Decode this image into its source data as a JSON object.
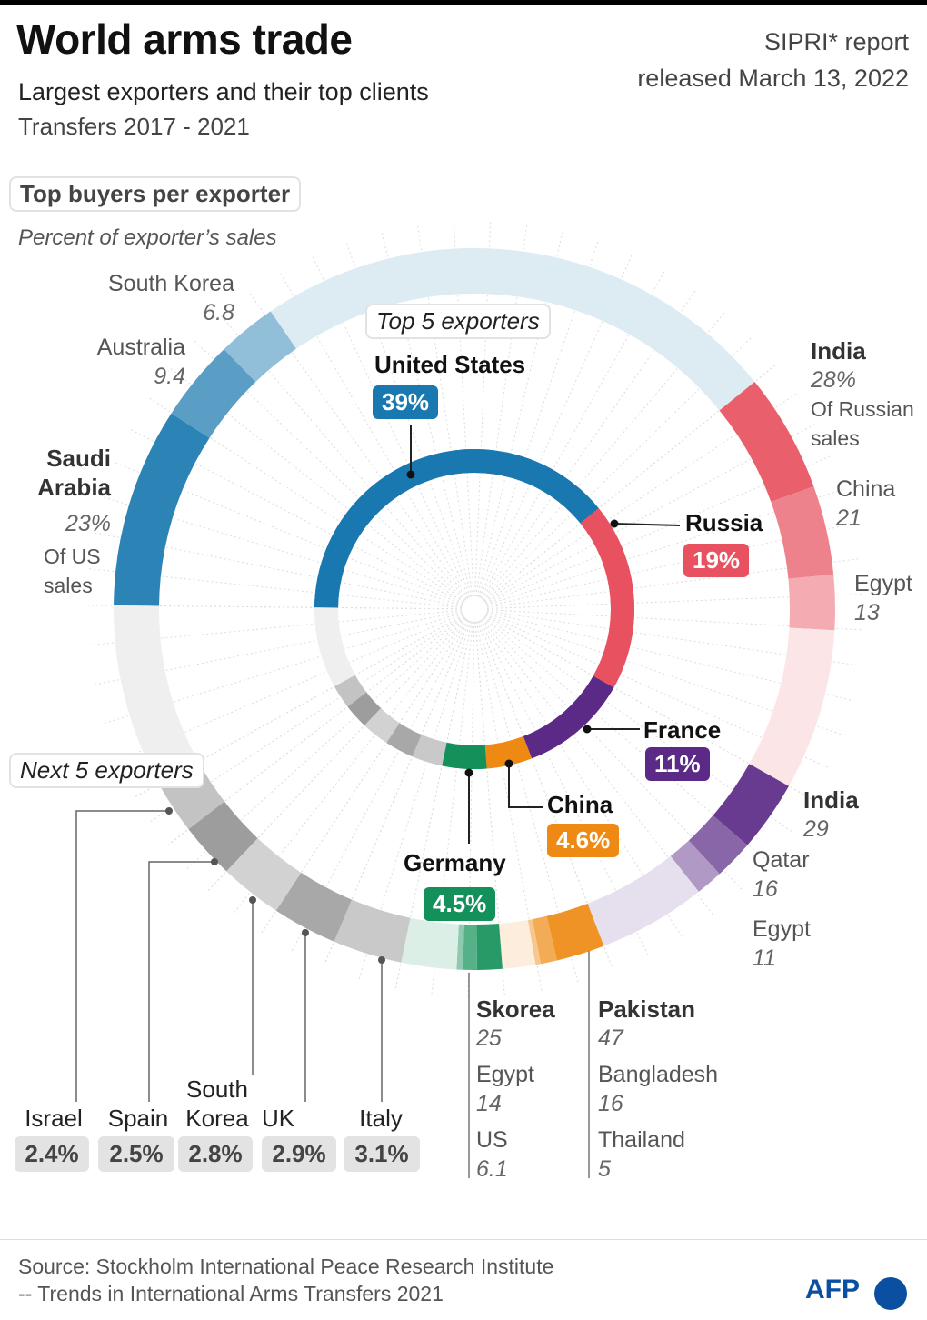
{
  "header": {
    "title": "World arms trade",
    "subtitle": "Largest exporters and their top clients",
    "period": "Transfers 2017 - 2021",
    "report_line1": "SIPRI* report",
    "report_line2": "released March 13, 2022"
  },
  "legend": {
    "top_buyers_title": "Top buyers per exporter",
    "top_buyers_note": "Percent of exporter’s  sales",
    "top5_title": "Top 5 exporters",
    "next5_title": "Next 5 exporters"
  },
  "chart_data": {
    "type": "pie",
    "top_exporters": [
      {
        "name": "United States",
        "share_label": "39%",
        "share": 39,
        "color": "#1a78b0"
      },
      {
        "name": "Russia",
        "share_label": "19%",
        "share": 19,
        "color": "#e8515f"
      },
      {
        "name": "France",
        "share_label": "11%",
        "share": 11,
        "color": "#5b2a86"
      },
      {
        "name": "China",
        "share_label": "4.6%",
        "share": 4.6,
        "color": "#ee8a14"
      },
      {
        "name": "Germany",
        "share_label": "4.5%",
        "share": 4.5,
        "color": "#14915a"
      }
    ],
    "next_exporters": [
      {
        "name": "Israel",
        "share_label": "2.4%",
        "share": 2.4
      },
      {
        "name": "Spain",
        "share_label": "2.5%",
        "share": 2.5
      },
      {
        "name": "South Korea",
        "share_label": "2.8%",
        "share": 2.8
      },
      {
        "name": "UK",
        "share_label": "2.9%",
        "share": 2.9
      },
      {
        "name": "Italy",
        "share_label": "3.1%",
        "share": 3.1
      }
    ],
    "buyers": {
      "United States": {
        "note": "Of US sales",
        "clients": [
          {
            "name": "Saudi Arabia",
            "value_label": "23%",
            "value": 23
          },
          {
            "name": "Australia",
            "value_label": "9.4",
            "value": 9.4
          },
          {
            "name": "South Korea",
            "value_label": "6.8",
            "value": 6.8
          }
        ]
      },
      "Russia": {
        "note": "Of Russian sales",
        "clients": [
          {
            "name": "India",
            "value_label": "28%",
            "value": 28
          },
          {
            "name": "China",
            "value_label": "21",
            "value": 21
          },
          {
            "name": "Egypt",
            "value_label": "13",
            "value": 13
          }
        ]
      },
      "France": {
        "clients": [
          {
            "name": "India",
            "value_label": "29",
            "value": 29
          },
          {
            "name": "Qatar",
            "value_label": "16",
            "value": 16
          },
          {
            "name": "Egypt",
            "value_label": "11",
            "value": 11
          }
        ]
      },
      "China": {
        "clients": [
          {
            "name": "Pakistan",
            "value_label": "47",
            "value": 47
          },
          {
            "name": "Bangladesh",
            "value_label": "16",
            "value": 16
          },
          {
            "name": "Thailand",
            "value_label": "5",
            "value": 5
          }
        ]
      },
      "Germany": {
        "clients": [
          {
            "name": "Skorea",
            "value_label": "25",
            "value": 25
          },
          {
            "name": "Egypt",
            "value_label": "14",
            "value": 14
          },
          {
            "name": "US",
            "value_label": "6.1",
            "value": 6.1
          }
        ]
      }
    }
  },
  "footer": {
    "line1": "Source: Stockholm International Peace Research Institute",
    "line2": "-- Trends in International Arms Transfers 2021",
    "logo": "AFP"
  }
}
